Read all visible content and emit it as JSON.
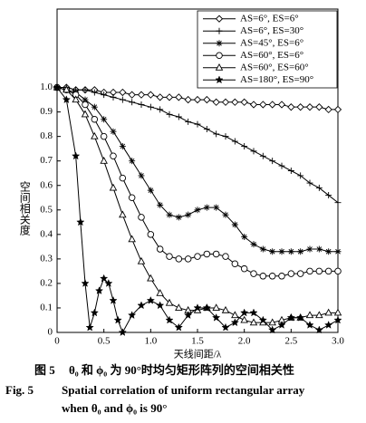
{
  "chart_data": {
    "type": "line",
    "xlabel": "天线间距/λ",
    "ylabel": "空间相关度",
    "x": [
      0,
      0.1,
      0.2,
      0.3,
      0.4,
      0.5,
      0.6,
      0.7,
      0.8,
      0.9,
      1.0,
      1.1,
      1.2,
      1.3,
      1.4,
      1.5,
      1.6,
      1.7,
      1.8,
      1.9,
      2.0,
      2.1,
      2.2,
      2.3,
      2.4,
      2.5,
      2.6,
      2.7,
      2.8,
      2.9,
      3.0
    ],
    "xlim": [
      0,
      3
    ],
    "xticks": [
      0,
      0.5,
      {
        "value": 1,
        "label": "1.0"
      },
      1.5,
      {
        "value": 2,
        "label": "2.0"
      },
      2.5,
      {
        "value": 3,
        "label": "3.0"
      }
    ],
    "ylim": [
      0,
      1.32
    ],
    "yticks": [
      0,
      0.1,
      0.2,
      0.3,
      0.4,
      0.5,
      0.6,
      0.7,
      0.8,
      0.9,
      {
        "value": 1,
        "label": "1.0"
      }
    ],
    "grid": false,
    "legend": "upper right",
    "series": [
      {
        "name": "AS=6°, ES=6°",
        "color": "#000000",
        "marker": "diamond",
        "values": [
          1,
          1,
          0.99,
          0.99,
          0.99,
          0.98,
          0.98,
          0.98,
          0.97,
          0.97,
          0.97,
          0.96,
          0.96,
          0.96,
          0.95,
          0.95,
          0.95,
          0.94,
          0.94,
          0.94,
          0.94,
          0.93,
          0.93,
          0.93,
          0.93,
          0.92,
          0.92,
          0.92,
          0.92,
          0.91,
          0.91
        ]
      },
      {
        "name": "AS=6°, ES=30°",
        "color": "#000000",
        "marker": "plus",
        "values": [
          1,
          1,
          0.99,
          0.99,
          0.98,
          0.97,
          0.96,
          0.95,
          0.94,
          0.93,
          0.92,
          0.91,
          0.89,
          0.88,
          0.86,
          0.85,
          0.83,
          0.81,
          0.8,
          0.78,
          0.76,
          0.74,
          0.72,
          0.7,
          0.68,
          0.66,
          0.64,
          0.61,
          0.59,
          0.56,
          0.53
        ]
      },
      {
        "name": "AS=45°, ES=6°",
        "color": "#000000",
        "marker": "asterisk",
        "values": [
          1,
          0.99,
          0.98,
          0.95,
          0.92,
          0.87,
          0.82,
          0.76,
          0.7,
          0.64,
          0.58,
          0.52,
          0.48,
          0.47,
          0.48,
          0.5,
          0.51,
          0.51,
          0.48,
          0.44,
          0.39,
          0.36,
          0.34,
          0.33,
          0.33,
          0.33,
          0.33,
          0.34,
          0.34,
          0.33,
          0.33
        ]
      },
      {
        "name": "AS=60°, ES=6°",
        "color": "#000000",
        "marker": "circle",
        "values": [
          1,
          0.99,
          0.97,
          0.93,
          0.87,
          0.8,
          0.72,
          0.63,
          0.55,
          0.47,
          0.4,
          0.34,
          0.31,
          0.3,
          0.3,
          0.31,
          0.32,
          0.32,
          0.31,
          0.28,
          0.26,
          0.24,
          0.23,
          0.23,
          0.23,
          0.24,
          0.24,
          0.25,
          0.25,
          0.25,
          0.25
        ]
      },
      {
        "name": "AS=60°, ES=60°",
        "color": "#000000",
        "marker": "triangle",
        "values": [
          1,
          0.99,
          0.95,
          0.89,
          0.8,
          0.7,
          0.59,
          0.48,
          0.38,
          0.29,
          0.22,
          0.16,
          0.12,
          0.1,
          0.09,
          0.09,
          0.1,
          0.1,
          0.09,
          0.07,
          0.05,
          0.04,
          0.04,
          0.04,
          0.05,
          0.06,
          0.06,
          0.07,
          0.07,
          0.08,
          0.08
        ]
      },
      {
        "name": "AS=180°, ES=90°",
        "color": "#000000",
        "marker": "star",
        "x": [
          0,
          0.1,
          0.2,
          0.25,
          0.3,
          0.35,
          0.4,
          0.45,
          0.5,
          0.55,
          0.6,
          0.65,
          0.7,
          0.8,
          0.9,
          1.0,
          1.1,
          1.2,
          1.3,
          1.4,
          1.5,
          1.6,
          1.7,
          1.8,
          1.9,
          2.0,
          2.1,
          2.2,
          2.3,
          2.4,
          2.5,
          2.6,
          2.7,
          2.8,
          2.9,
          3.0
        ],
        "values": [
          1,
          0.95,
          0.72,
          0.45,
          0.2,
          0.02,
          0.08,
          0.17,
          0.22,
          0.2,
          0.13,
          0.05,
          0,
          0.07,
          0.11,
          0.13,
          0.11,
          0.05,
          0.02,
          0.07,
          0.1,
          0.1,
          0.06,
          0.02,
          0.04,
          0.08,
          0.08,
          0.05,
          0.01,
          0.03,
          0.06,
          0.06,
          0.03,
          0.01,
          0.03,
          0.05
        ]
      }
    ]
  },
  "caption": {
    "cn_label": "图 5",
    "cn_text": "θ₀ 和 ϕ₀ 为 90°时均匀矩形阵列的空间相关性",
    "en_label": "Fig. 5",
    "en_line1": "Spatial correlation of uniform rectangular array",
    "en_line2": "when θ₀ and ϕ₀ is 90°"
  }
}
